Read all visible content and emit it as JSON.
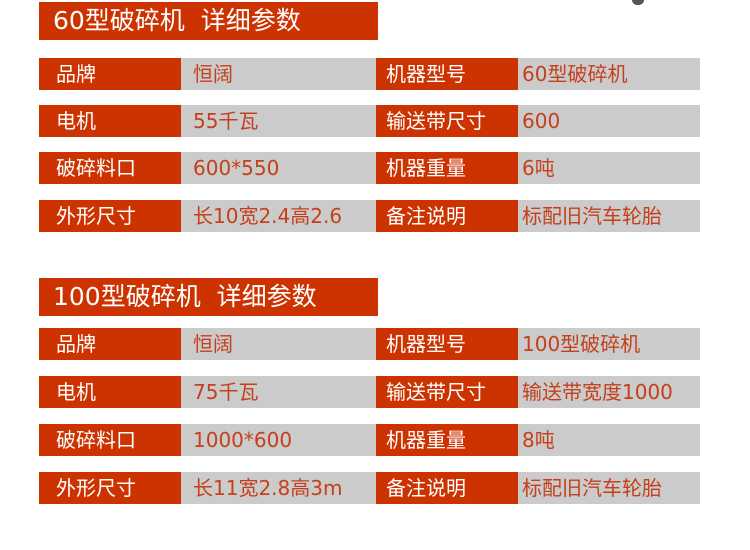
{
  "sections": [
    {
      "title": "60型破碎机  详细参数",
      "rows": [
        {
          "label1": "品牌",
          "value1": "恒阔",
          "label2": "机器型号",
          "value2": "60型破碎机"
        },
        {
          "label1": "电机",
          "value1": "55千瓦",
          "label2": "输送带尺寸",
          "value2": "600"
        },
        {
          "label1": "破碎料口",
          "value1": "600*550",
          "label2": "机器重量",
          "value2": "6吨"
        },
        {
          "label1": "外形尺寸",
          "value1": "长10宽2.4高2.6",
          "label2": "备注说明",
          "value2": "标配旧汽车轮胎"
        }
      ]
    },
    {
      "title": "100型破碎机  详细参数",
      "rows": [
        {
          "label1": "品牌",
          "value1": "恒阔",
          "label2": "机器型号",
          "value2": "100型破碎机"
        },
        {
          "label1": "电机",
          "value1": "75千瓦",
          "label2": "输送带尺寸",
          "value2": "输送带宽度1000"
        },
        {
          "label1": "破碎料口",
          "value1": "1000*600",
          "label2": "机器重量",
          "value2": "8吨"
        },
        {
          "label1": "外形尺寸",
          "value1": "长11宽2.8高3m",
          "label2": "备注说明",
          "value2": "标配旧汽车轮胎"
        }
      ]
    }
  ],
  "colors": {
    "accent": "#cc3300",
    "cell_bg": "#cbcbcb",
    "value_text": "#c4401c"
  }
}
